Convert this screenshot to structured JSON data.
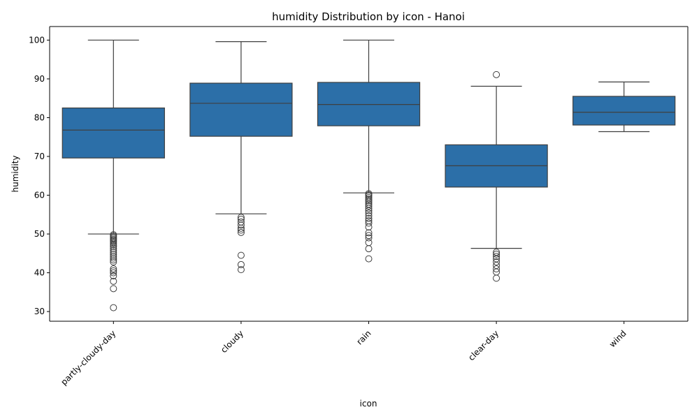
{
  "colors": {
    "box_fill": "#2c6fa8",
    "line": "#3f3f3f",
    "axis": "#000000",
    "background": "#ffffff"
  },
  "chart_data": {
    "type": "box",
    "title": "humidity Distribution by icon - Hanoi",
    "xlabel": "icon",
    "ylabel": "humidity",
    "ylim": [
      27.5,
      103.5
    ],
    "yticks": [
      30,
      40,
      50,
      60,
      70,
      80,
      90,
      100
    ],
    "grid": false,
    "categories": [
      "partly-cloudy-day",
      "cloudy",
      "rain",
      "clear-day",
      "wind"
    ],
    "boxes": [
      {
        "category": "partly-cloudy-day",
        "whisker_low": 50.0,
        "q1": 69.6,
        "median": 76.8,
        "q3": 82.5,
        "whisker_high": 100.0,
        "outliers": [
          49.8,
          49.5,
          49.2,
          48.9,
          48.6,
          48.3,
          48.0,
          47.6,
          47.2,
          46.8,
          46.3,
          45.8,
          45.3,
          44.8,
          44.3,
          43.8,
          43.3,
          42.8,
          41.0,
          40.5,
          40.0,
          39.2,
          37.8,
          35.9,
          31.0
        ]
      },
      {
        "category": "cloudy",
        "whisker_low": 55.2,
        "q1": 75.2,
        "median": 83.7,
        "q3": 88.9,
        "whisker_high": 99.6,
        "outliers": [
          54.3,
          53.8,
          53.1,
          52.3,
          51.5,
          51.0,
          50.4,
          44.5,
          42.1,
          40.8
        ]
      },
      {
        "category": "rain",
        "whisker_low": 60.6,
        "q1": 77.9,
        "median": 83.4,
        "q3": 89.1,
        "whisker_high": 100.0,
        "outliers": [
          60.4,
          60.1,
          59.8,
          59.4,
          59.0,
          58.6,
          58.2,
          57.7,
          57.2,
          56.6,
          56.0,
          55.4,
          54.7,
          54.0,
          53.4,
          52.8,
          51.8,
          50.3,
          49.6,
          49.0,
          47.8,
          46.2,
          43.6
        ]
      },
      {
        "category": "clear-day",
        "whisker_low": 46.3,
        "q1": 62.1,
        "median": 67.6,
        "q3": 73.0,
        "whisker_high": 88.1,
        "outliers": [
          91.1,
          45.3,
          44.8,
          44.2,
          43.6,
          42.8,
          41.9,
          41.0,
          40.2,
          38.6
        ]
      },
      {
        "category": "wind",
        "whisker_low": 76.4,
        "q1": 78.1,
        "median": 81.4,
        "q3": 85.5,
        "whisker_high": 89.2,
        "outliers": []
      }
    ]
  }
}
